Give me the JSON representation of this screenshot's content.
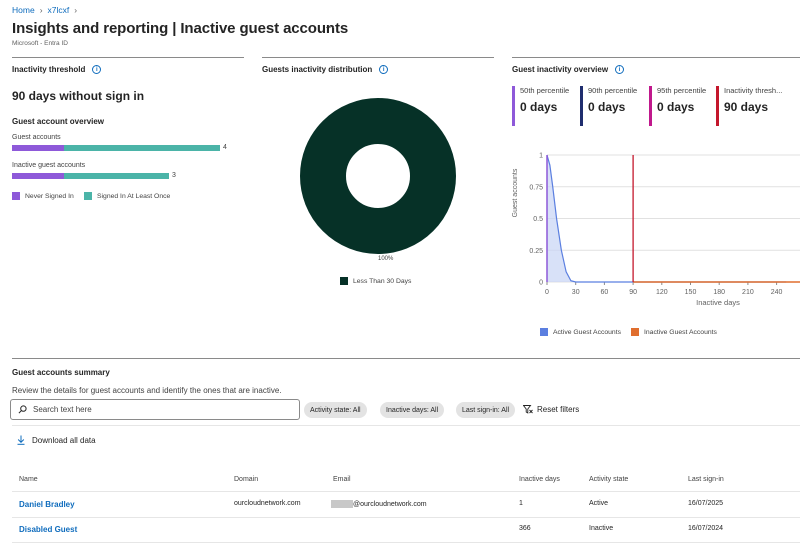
{
  "breadcrumb": {
    "home": "Home",
    "tenant": "x7lcxf"
  },
  "page": {
    "title": "Insights and reporting | Inactive guest accounts",
    "more": "···",
    "subtitle": "Microsoft - Entra ID"
  },
  "threshold_card": {
    "title": "Inactivity threshold",
    "value": "90 days without sign in",
    "overview_title": "Guest account overview",
    "rows": [
      {
        "label": "Guest accounts",
        "count": "4",
        "never_fraction": 0.25
      },
      {
        "label": "Inactive guest accounts",
        "count": "3",
        "never_fraction": 0.33
      }
    ],
    "legend": [
      {
        "label": "Never Signed In",
        "color": "#8e59d9"
      },
      {
        "label": "Signed In At Least Once",
        "color": "#4bb4a8"
      }
    ]
  },
  "distribution_card": {
    "title": "Guests inactivity distribution",
    "percent_label": "100%",
    "legend_label": "Less Than 30 Days",
    "color": "#063127"
  },
  "overview_card": {
    "title": "Guest inactivity overview",
    "percentiles": [
      {
        "label": "50th percentile",
        "value": "0 days",
        "color": "#8e59d9"
      },
      {
        "label": "90th percentile",
        "value": "0 days",
        "color": "#1f2d6e"
      },
      {
        "label": "95th percentile",
        "value": "0 days",
        "color": "#c0188c"
      },
      {
        "label": "Inactivity thresh...",
        "value": "90 days",
        "color": "#c4172c"
      }
    ]
  },
  "chart_data": {
    "type": "area",
    "xlabel": "Inactive days",
    "ylabel": "Guest accounts",
    "x_ticks": [
      "0",
      "30",
      "60",
      "90",
      "120",
      "150",
      "180",
      "210",
      "240",
      "2"
    ],
    "y_ticks": [
      "0",
      "0.25",
      "0.5",
      "0.75",
      "1"
    ],
    "xlim": [
      0,
      250
    ],
    "ylim": [
      0,
      1
    ],
    "threshold_x": 90,
    "series": [
      {
        "name": "Active Guest Accounts",
        "color": "#5b7fe0",
        "x": [
          0,
          3,
          6,
          10,
          15,
          20,
          25,
          30,
          250
        ],
        "y": [
          1,
          0.92,
          0.75,
          0.5,
          0.25,
          0.08,
          0.01,
          0,
          0
        ]
      },
      {
        "name": "Inactive Guest Accounts",
        "color": "#e06e2e",
        "x": [
          90,
          250
        ],
        "y": [
          0,
          0
        ]
      }
    ]
  },
  "summary": {
    "title": "Guest accounts summary",
    "description": "Review the details for guest accounts and identify the ones that are inactive.",
    "search_placeholder": "Search text here",
    "filters": [
      "Activity state: All",
      "Inactive days: All",
      "Last sign-in: All"
    ],
    "reset_label": "Reset filters",
    "download_label": "Download all data",
    "columns": [
      "Name",
      "Domain",
      "Email",
      "Inactive days",
      "Activity state",
      "Last sign-in"
    ],
    "rows": [
      {
        "name": "Daniel Bradley",
        "domain": "ourcloudnetwork.com",
        "email": "@ourcloudnetwork.com",
        "inactive_days": "1",
        "state": "Active",
        "last_signin": "16/07/2025"
      },
      {
        "name": "Disabled Guest",
        "domain": "",
        "email": "",
        "inactive_days": "366",
        "state": "Inactive",
        "last_signin": "16/07/2024"
      }
    ]
  }
}
